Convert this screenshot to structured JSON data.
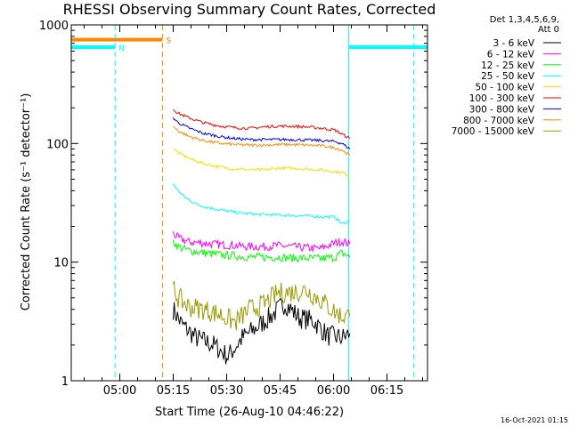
{
  "chart_data": {
    "type": "line",
    "title": "RHESSI Observing Summary Count Rates, Corrected",
    "xlabel": "Start Time (26-Aug-10 04:46:22)",
    "ylabel": "Corrected Count Rate (s⁻¹ detector⁻¹)",
    "footer": "16-Oct-2021 01:15",
    "x_unit": "minutes after 04:46:22",
    "xlim": [
      0,
      100
    ],
    "ylim": [
      1,
      1000
    ],
    "y_scale": "log",
    "x_tick_labels": [
      "05:00",
      "05:15",
      "05:30",
      "05:45",
      "06:00",
      "06:15"
    ],
    "x_tick_minutes": [
      13.63,
      28.63,
      43.63,
      58.63,
      73.63,
      88.63
    ],
    "y_tick_labels": [
      "1",
      "10",
      "100",
      "1000"
    ],
    "y_tick_values": [
      1,
      10,
      100,
      1000
    ],
    "legend_title": [
      "Det 1,3,4,5,6,9,",
      "Att 0"
    ],
    "legend_position": "right",
    "series": [
      {
        "name": "3 - 6 keV",
        "color": "#000000",
        "x": [
          28.6,
          31,
          35,
          40,
          44,
          48,
          52,
          56,
          60,
          64,
          68,
          72,
          76,
          78.2
        ],
        "y": [
          4.0,
          3.0,
          2.3,
          2.0,
          1.6,
          2.3,
          2.8,
          3.5,
          4.5,
          3.4,
          3.2,
          2.4,
          2.3,
          2.5
        ]
      },
      {
        "name": "6 - 12 keV",
        "color": "#ff00ff",
        "x": [
          28.6,
          30,
          33,
          37,
          42,
          46,
          50,
          54,
          58,
          62,
          66,
          70,
          74,
          76,
          78.2
        ],
        "y": [
          17.5,
          16,
          14.8,
          14.5,
          14,
          13.8,
          13.5,
          13.5,
          13.8,
          13.5,
          13.2,
          13,
          14.5,
          15,
          14.2
        ]
      },
      {
        "name": "12 - 25 keV",
        "color": "#00ff00",
        "x": [
          28.6,
          30,
          33,
          37,
          42,
          46,
          50,
          54,
          58,
          62,
          66,
          70,
          74,
          76,
          78.2
        ],
        "y": [
          15,
          13.5,
          12.5,
          12,
          11.5,
          11.3,
          11,
          11,
          11,
          10.8,
          10.8,
          10.7,
          11,
          12,
          11
        ]
      },
      {
        "name": "25 - 50 keV",
        "color": "#00ffff",
        "x": [
          28.6,
          30,
          32,
          35,
          38,
          42,
          46,
          50,
          54,
          58,
          62,
          66,
          70,
          74,
          76,
          78.2
        ],
        "y": [
          46,
          40,
          35,
          31,
          29,
          27.5,
          26.3,
          25.6,
          25.2,
          25,
          24.8,
          24.5,
          24.2,
          24,
          21,
          22.5
        ]
      },
      {
        "name": "50 - 100 keV",
        "color": "#e6e600",
        "x": [
          28.6,
          30,
          33,
          37,
          42,
          46,
          50,
          54,
          58,
          62,
          66,
          70,
          74,
          76,
          78.2
        ],
        "y": [
          92,
          84,
          75,
          68,
          63,
          61,
          60,
          60,
          62,
          62,
          61,
          60,
          58,
          57,
          53
        ]
      },
      {
        "name": "100 - 300 keV",
        "color": "#ff0000",
        "x": [
          28.6,
          30,
          33,
          37,
          42,
          46,
          50,
          54,
          58,
          62,
          66,
          70,
          74,
          76,
          78.2
        ],
        "y": [
          195,
          180,
          165,
          150,
          140,
          136,
          134,
          138,
          140,
          140,
          138,
          135,
          130,
          120,
          110
        ]
      },
      {
        "name": "300 - 800 keV",
        "color": "#0000ff",
        "x": [
          28.6,
          30,
          33,
          37,
          42,
          46,
          50,
          54,
          58,
          62,
          66,
          70,
          74,
          76,
          78.2
        ],
        "y": [
          165,
          150,
          135,
          122,
          114,
          110,
          108,
          108,
          108,
          108,
          107,
          106,
          104,
          100,
          90
        ]
      },
      {
        "name": "800 - 7000 keV",
        "color": "#ff8800",
        "x": [
          28.6,
          30,
          33,
          37,
          42,
          46,
          50,
          54,
          58,
          62,
          66,
          70,
          74,
          76,
          78.2
        ],
        "y": [
          140,
          128,
          115,
          106,
          100,
          98,
          97,
          97,
          98,
          98,
          97,
          96,
          92,
          88,
          80
        ]
      },
      {
        "name": "7000 - 15000 keV",
        "color": "#999900",
        "x": [
          28.6,
          30,
          33,
          37,
          42,
          46,
          50,
          54,
          58,
          62,
          66,
          70,
          74,
          76,
          78.2
        ],
        "y": [
          6.0,
          5.0,
          4.2,
          4.0,
          3.6,
          3.1,
          4.0,
          4.4,
          5.5,
          5.6,
          5.8,
          4.8,
          3.8,
          3.5,
          3.5
        ]
      }
    ],
    "flags": [
      {
        "label": "N",
        "color": "#00ffff",
        "segments": [
          [
            0,
            12.3
          ],
          [
            77.9,
            100
          ]
        ]
      },
      {
        "label": "S",
        "color": "#ff8800",
        "segments": [
          [
            0,
            25.6
          ]
        ]
      }
    ],
    "vertical_markers": [
      {
        "x": 0,
        "color": "#00ffff",
        "style": "solid"
      },
      {
        "x": 12.3,
        "color": "#00ffff",
        "style": "dashed"
      },
      {
        "x": 25.6,
        "color": "#ff8800",
        "style": "dashed"
      },
      {
        "x": 77.9,
        "color": "#00ffff",
        "style": "solid"
      },
      {
        "x": 96.1,
        "color": "#00ffff",
        "style": "dashed"
      }
    ]
  }
}
